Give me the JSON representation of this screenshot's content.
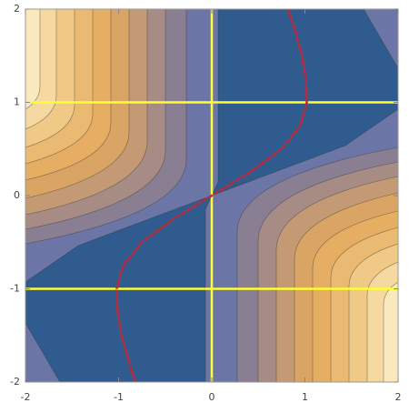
{
  "chart_data": {
    "type": "line",
    "xlim": [
      -2,
      2
    ],
    "ylim": [
      -2,
      2
    ],
    "xticks": [
      -2,
      -1,
      0,
      1,
      2
    ],
    "yticks": [
      -2,
      -1,
      0,
      1,
      2
    ],
    "x": [
      -0.82,
      -0.9,
      -0.97,
      -1.01,
      -1.02,
      -0.95,
      -0.75,
      -0.41,
      0,
      0.41,
      0.75,
      0.95,
      1.02,
      1.01,
      0.97,
      0.9,
      0.82
    ],
    "series": [
      {
        "color": "#c0283a",
        "values": [
          -2,
          -1.75,
          -1.5,
          -1.25,
          -1,
          -0.75,
          -0.5,
          -0.25,
          0,
          0.25,
          0.5,
          0.75,
          1,
          1.25,
          1.5,
          1.75,
          2
        ]
      }
    ],
    "reference_lines": {
      "color": "#ffff33",
      "x": [
        0
      ],
      "y": [
        -1,
        1
      ]
    }
  }
}
